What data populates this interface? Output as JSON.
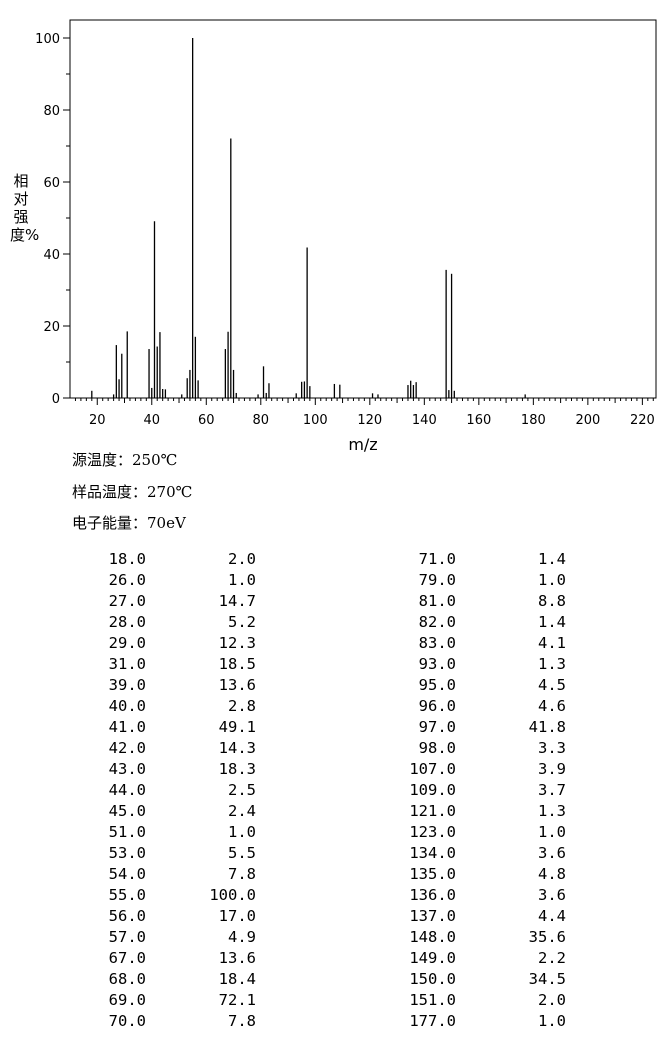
{
  "chart_data": {
    "type": "bar",
    "xlabel": "m/z",
    "ylabel": "相对强度%",
    "xlim": [
      10,
      225
    ],
    "ylim": [
      0,
      100
    ],
    "xticks": [
      20,
      40,
      60,
      80,
      100,
      120,
      140,
      160,
      180,
      200,
      220
    ],
    "yticks": [
      0,
      20,
      40,
      60,
      80,
      100
    ],
    "grid": false,
    "x": [
      18,
      26,
      27,
      28,
      29,
      31,
      39,
      40,
      41,
      42,
      43,
      44,
      45,
      51,
      53,
      54,
      55,
      56,
      57,
      67,
      68,
      69,
      70,
      71,
      79,
      81,
      82,
      83,
      93,
      95,
      96,
      97,
      98,
      107,
      109,
      121,
      123,
      134,
      135,
      136,
      137,
      148,
      149,
      150,
      151,
      177
    ],
    "values": [
      2.0,
      1.0,
      14.7,
      5.2,
      12.3,
      18.5,
      13.6,
      2.8,
      49.1,
      14.3,
      18.3,
      2.5,
      2.4,
      1.0,
      5.5,
      7.8,
      100.0,
      17.0,
      4.9,
      13.6,
      18.4,
      72.1,
      7.8,
      1.4,
      1.0,
      8.8,
      1.4,
      4.1,
      1.3,
      4.5,
      4.6,
      41.8,
      3.3,
      3.9,
      3.7,
      1.3,
      1.0,
      3.6,
      4.8,
      3.6,
      4.4,
      35.6,
      2.2,
      34.5,
      2.0,
      1.0
    ]
  },
  "conditions": [
    {
      "key": "源温度：",
      "value": "250℃"
    },
    {
      "key": "样品温度：",
      "value": "270℃"
    },
    {
      "key": "电子能量：",
      "value": "70eV"
    }
  ],
  "peak_table": {
    "left": [
      [
        "18.0",
        "2.0"
      ],
      [
        "26.0",
        "1.0"
      ],
      [
        "27.0",
        "14.7"
      ],
      [
        "28.0",
        "5.2"
      ],
      [
        "29.0",
        "12.3"
      ],
      [
        "31.0",
        "18.5"
      ],
      [
        "39.0",
        "13.6"
      ],
      [
        "40.0",
        "2.8"
      ],
      [
        "41.0",
        "49.1"
      ],
      [
        "42.0",
        "14.3"
      ],
      [
        "43.0",
        "18.3"
      ],
      [
        "44.0",
        "2.5"
      ],
      [
        "45.0",
        "2.4"
      ],
      [
        "51.0",
        "1.0"
      ],
      [
        "53.0",
        "5.5"
      ],
      [
        "54.0",
        "7.8"
      ],
      [
        "55.0",
        "100.0"
      ],
      [
        "56.0",
        "17.0"
      ],
      [
        "57.0",
        "4.9"
      ],
      [
        "67.0",
        "13.6"
      ],
      [
        "68.0",
        "18.4"
      ],
      [
        "69.0",
        "72.1"
      ],
      [
        "70.0",
        "7.8"
      ]
    ],
    "right": [
      [
        "71.0",
        "1.4"
      ],
      [
        "79.0",
        "1.0"
      ],
      [
        "81.0",
        "8.8"
      ],
      [
        "82.0",
        "1.4"
      ],
      [
        "83.0",
        "4.1"
      ],
      [
        "93.0",
        "1.3"
      ],
      [
        "95.0",
        "4.5"
      ],
      [
        "96.0",
        "4.6"
      ],
      [
        "97.0",
        "41.8"
      ],
      [
        "98.0",
        "3.3"
      ],
      [
        "107.0",
        "3.9"
      ],
      [
        "109.0",
        "3.7"
      ],
      [
        "121.0",
        "1.3"
      ],
      [
        "123.0",
        "1.0"
      ],
      [
        "134.0",
        "3.6"
      ],
      [
        "135.0",
        "4.8"
      ],
      [
        "136.0",
        "3.6"
      ],
      [
        "137.0",
        "4.4"
      ],
      [
        "148.0",
        "35.6"
      ],
      [
        "149.0",
        "2.2"
      ],
      [
        "150.0",
        "34.5"
      ],
      [
        "151.0",
        "2.0"
      ],
      [
        "177.0",
        "1.0"
      ]
    ]
  }
}
